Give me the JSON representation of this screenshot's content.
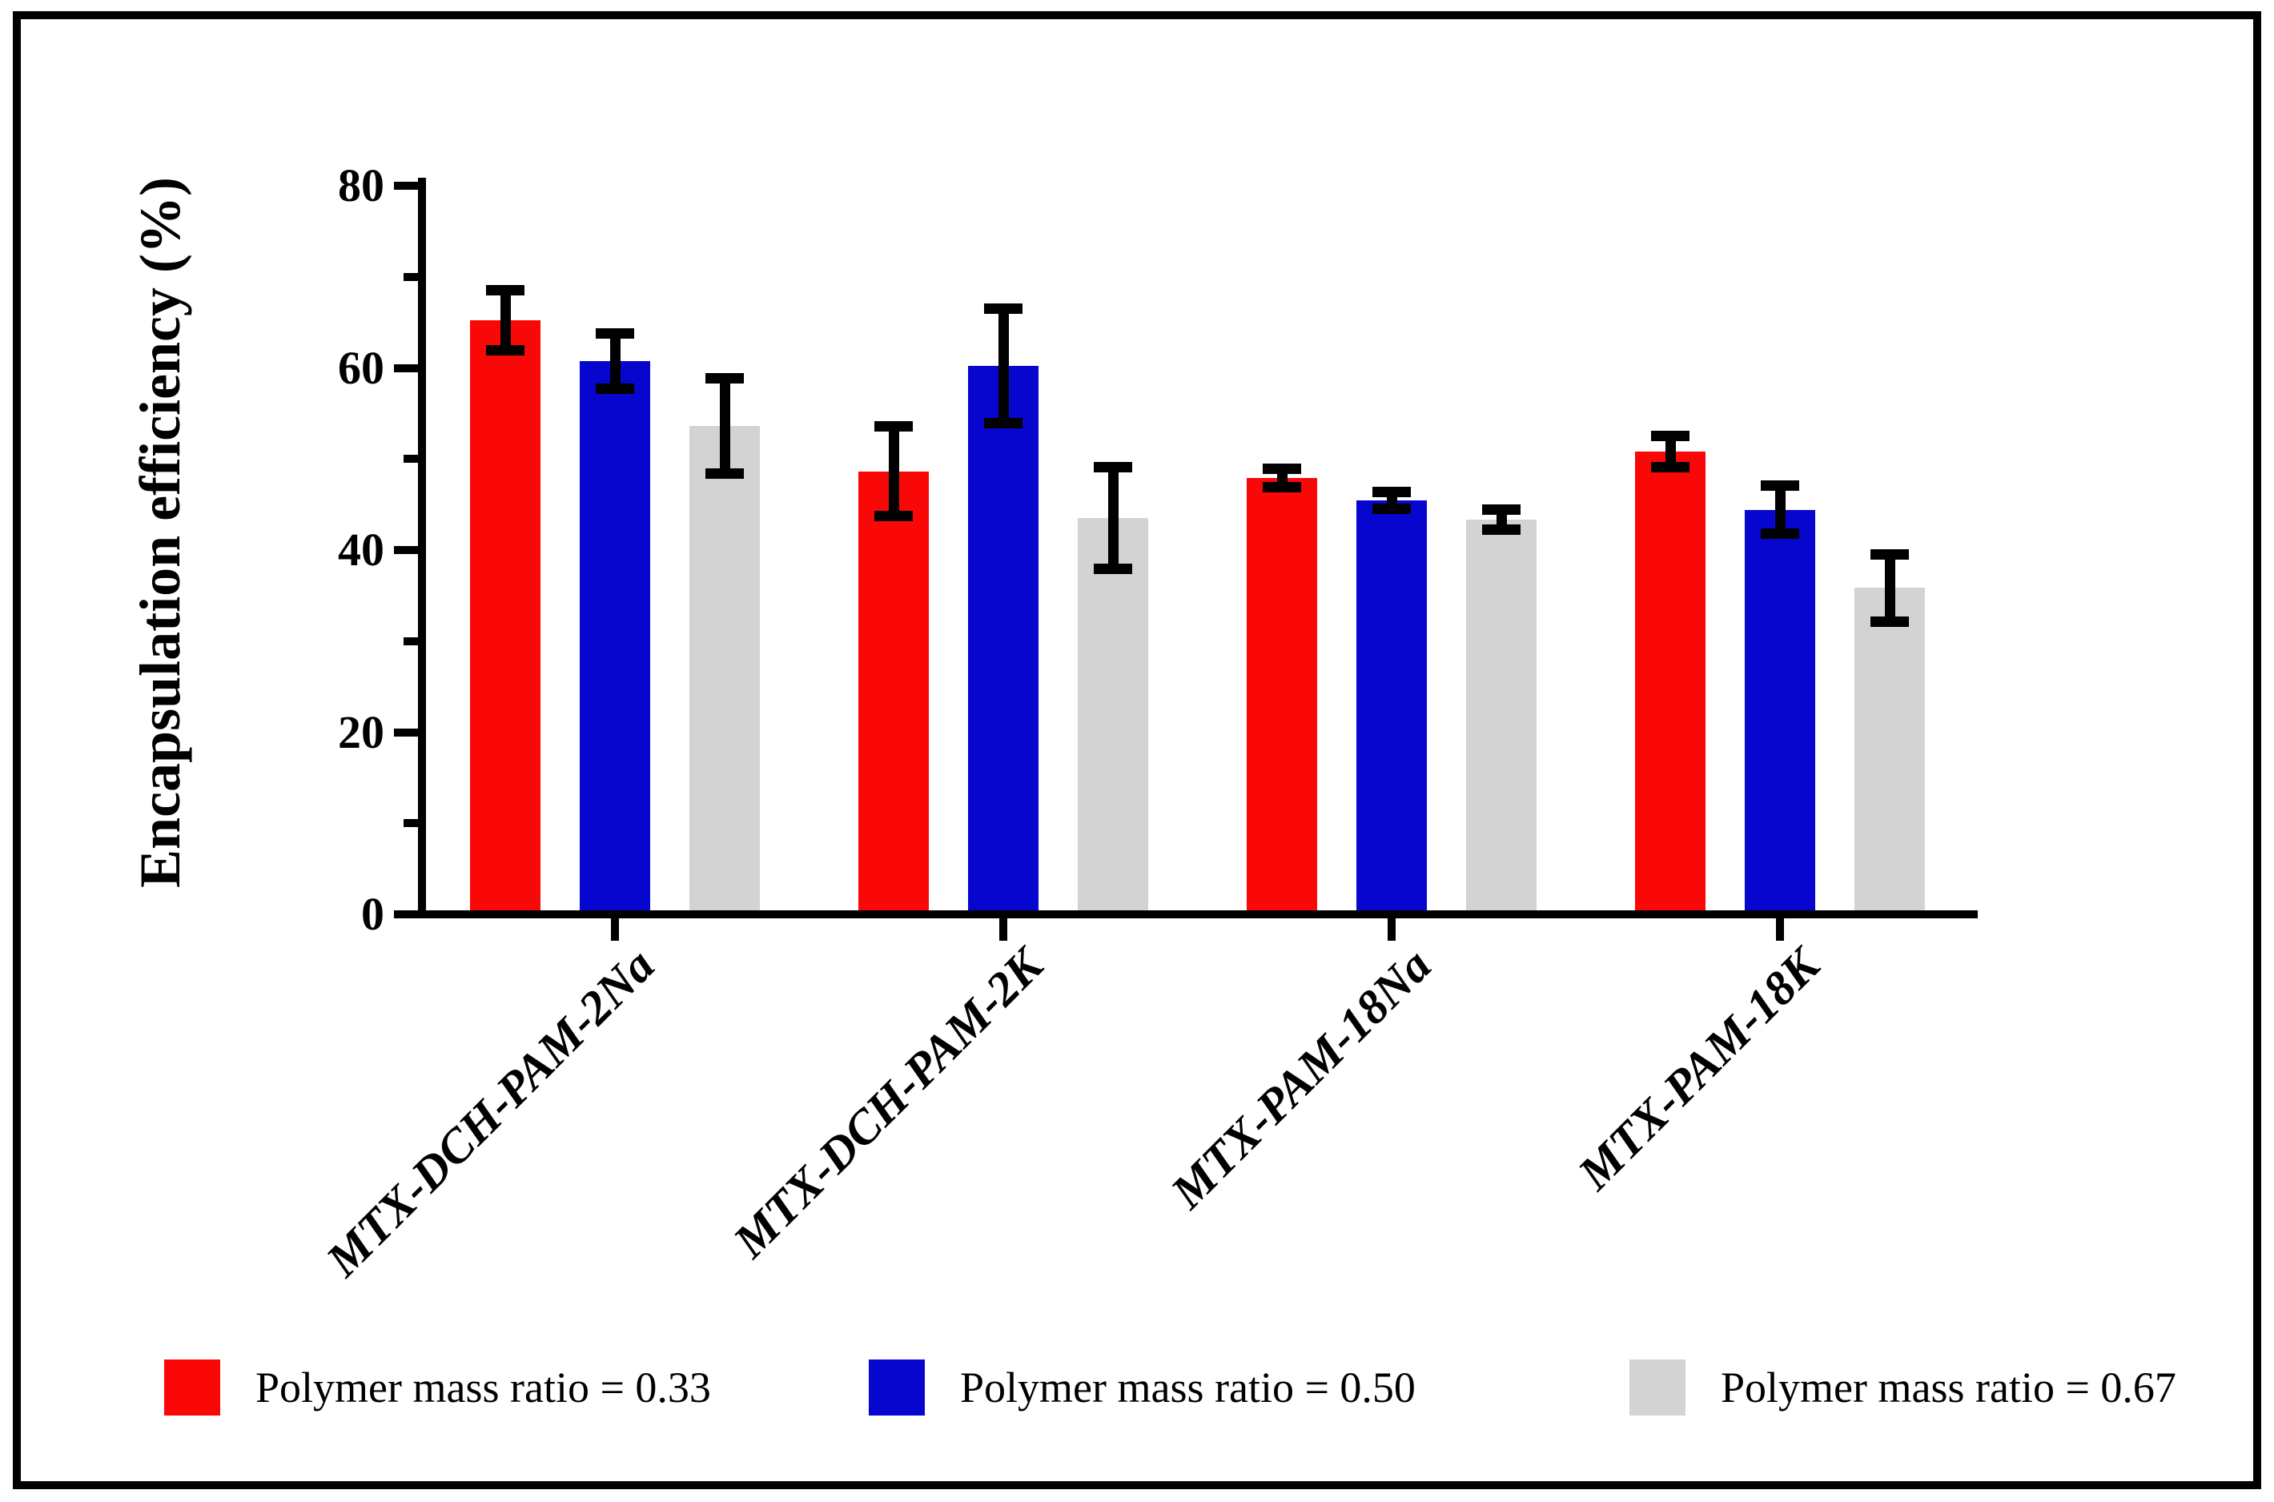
{
  "figure": {
    "border_color": "#000000",
    "background_color": "#ffffff"
  },
  "chart_data": {
    "type": "bar",
    "title": "",
    "xlabel": "",
    "ylabel": "Encapsulation efficiency (%)",
    "ylim": [
      0,
      80
    ],
    "y_major_ticks": [
      0,
      20,
      40,
      60,
      80
    ],
    "y_minor_ticks": [
      10,
      30,
      50,
      70
    ],
    "y_tick_labels": [
      "0",
      "20",
      "40",
      "60",
      "80"
    ],
    "grid": false,
    "error_bars": true,
    "legend_position": "bottom",
    "categories": [
      "MTX-DCH-PAM-2Na",
      "MTX-DCH-PAM-2K",
      "MTX-PAM-18Na",
      "MTX-PAM-18K"
    ],
    "series": [
      {
        "name": "Polymer mass ratio = 0.33",
        "color": "#FA0808",
        "values": [
          64.8,
          48.2,
          47.5,
          50.4
        ],
        "errors": [
          3.3,
          4.9,
          1.0,
          1.7
        ]
      },
      {
        "name": "Polymer mass ratio = 0.50",
        "color": "#0606CE",
        "values": [
          60.3,
          59.8,
          45.0,
          44.0
        ],
        "errors": [
          3.0,
          6.3,
          0.9,
          2.6
        ]
      },
      {
        "name": "Polymer mass ratio = 0.67",
        "color": "#D3D3D3",
        "values": [
          53.2,
          43.1,
          42.9,
          35.4
        ],
        "errors": [
          5.2,
          5.6,
          1.1,
          3.7
        ]
      }
    ]
  }
}
